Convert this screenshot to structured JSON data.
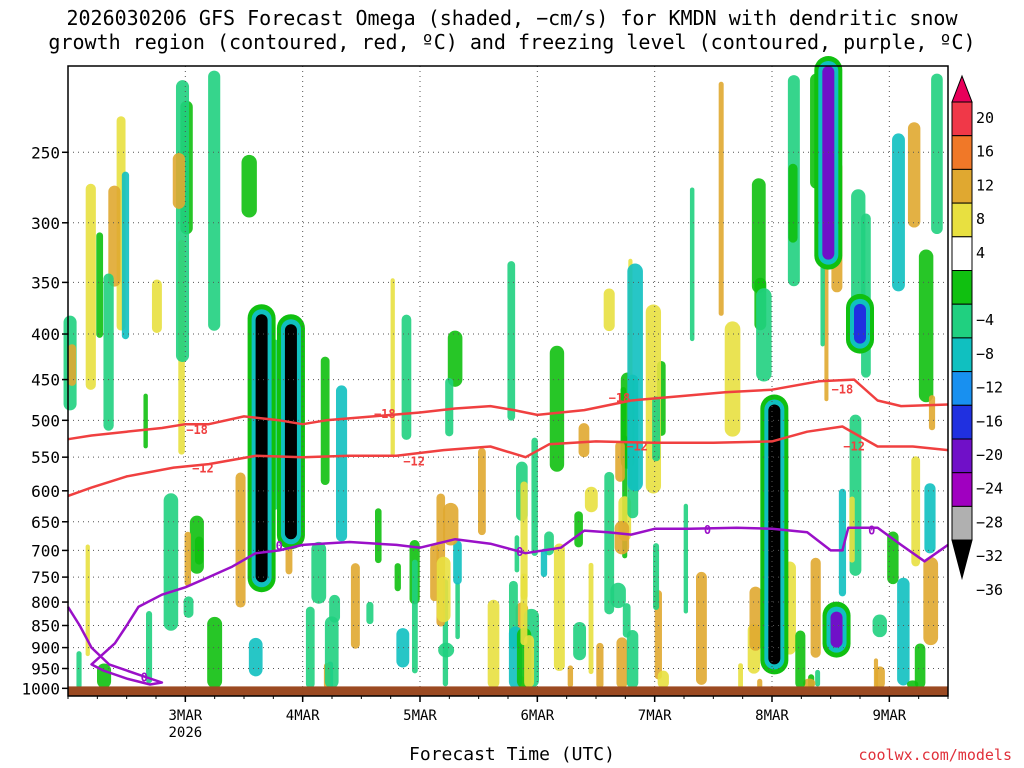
{
  "title_line1": "2026030206 GFS Forecast Omega (shaded, −cm/s) for KMDN with dendritic snow",
  "title_line2": "growth region (contoured, red, ºC) and freezing level (contoured, purple, ºC)",
  "credit": "coolwx.com/models",
  "colors": {
    "dgz_contour": "#f04040",
    "freezing_contour": "#9a10c8",
    "ground": "#9b4a22",
    "grid": "#555555"
  },
  "chart_data": {
    "type": "heatmap",
    "title": "2026030206 GFS Forecast Omega (shaded, −cm/s) for KMDN with dendritic snow growth region (contoured, red, ºC) and freezing level (contoured, purple, ºC)",
    "xlabel": "Forecast Time (UTC)",
    "ylabel": "",
    "y_axis": {
      "scale": "log",
      "inverted": true,
      "ylim": [
        1020,
        200
      ],
      "ticks": [
        "250",
        "300",
        "350",
        "400",
        "450",
        "500",
        "550",
        "600",
        "650",
        "700",
        "750",
        "800",
        "850",
        "900",
        "950",
        "1000"
      ]
    },
    "x_axis": {
      "xlim": [
        0.0,
        7.5
      ],
      "ticks": [
        {
          "value": 1,
          "label": "3MAR",
          "sublabel": "2026"
        },
        {
          "value": 2,
          "label": "4MAR"
        },
        {
          "value": 3,
          "label": "5MAR"
        },
        {
          "value": 4,
          "label": "6MAR"
        },
        {
          "value": 5,
          "label": "7MAR"
        },
        {
          "value": 6,
          "label": "8MAR"
        },
        {
          "value": 7,
          "label": "9MAR"
        }
      ]
    },
    "grid": true,
    "colorbar": {
      "position": "right",
      "labels": [
        "20",
        "16",
        "12",
        "8",
        "4",
        "−4",
        "−8",
        "−12",
        "−16",
        "−20",
        "−24",
        "−28",
        "−32",
        "−36"
      ],
      "colors": [
        "#e8005a",
        "#f03848",
        "#f07828",
        "#e0a830",
        "#e8e040",
        "#ffffff",
        "#10c010",
        "#20d080",
        "#10c0c0",
        "#1890f0",
        "#2030e0",
        "#7010c8",
        "#a000c0",
        "#b0b0b0",
        "#000000"
      ]
    },
    "contours": [
      {
        "name": "-18",
        "color": "#f04040",
        "label": "−18",
        "points": [
          [
            0.0,
            525
          ],
          [
            0.2,
            520
          ],
          [
            0.5,
            515
          ],
          [
            0.8,
            510
          ],
          [
            1.0,
            505
          ],
          [
            1.2,
            505
          ],
          [
            1.5,
            495
          ],
          [
            1.8,
            500
          ],
          [
            2.0,
            505
          ],
          [
            2.2,
            500
          ],
          [
            2.6,
            495
          ],
          [
            3.0,
            490
          ],
          [
            3.3,
            485
          ],
          [
            3.6,
            482
          ],
          [
            3.8,
            487
          ],
          [
            4.0,
            493
          ],
          [
            4.4,
            487
          ],
          [
            4.8,
            475
          ],
          [
            5.2,
            470
          ],
          [
            5.6,
            465
          ],
          [
            6.0,
            462
          ],
          [
            6.4,
            452
          ],
          [
            6.7,
            450
          ],
          [
            6.9,
            475
          ],
          [
            7.1,
            482
          ],
          [
            7.5,
            480
          ]
        ],
        "label_positions": [
          [
            1.1,
            513
          ],
          [
            2.7,
            492
          ],
          [
            4.7,
            472
          ],
          [
            6.6,
            462
          ]
        ]
      },
      {
        "name": "-12",
        "color": "#f04040",
        "label": "−12",
        "points": [
          [
            0.0,
            608
          ],
          [
            0.2,
            595
          ],
          [
            0.5,
            578
          ],
          [
            0.9,
            565
          ],
          [
            1.2,
            560
          ],
          [
            1.6,
            548
          ],
          [
            2.0,
            550
          ],
          [
            2.4,
            548
          ],
          [
            2.8,
            548
          ],
          [
            3.2,
            540
          ],
          [
            3.6,
            535
          ],
          [
            3.9,
            550
          ],
          [
            4.1,
            532
          ],
          [
            4.5,
            528
          ],
          [
            5.0,
            530
          ],
          [
            5.5,
            530
          ],
          [
            6.0,
            528
          ],
          [
            6.3,
            515
          ],
          [
            6.6,
            508
          ],
          [
            6.9,
            535
          ],
          [
            7.2,
            535
          ],
          [
            7.5,
            540
          ]
        ],
        "label_positions": [
          [
            1.15,
            566
          ],
          [
            2.95,
            556
          ],
          [
            4.85,
            535
          ],
          [
            6.7,
            535
          ]
        ]
      },
      {
        "name": "0",
        "color": "#9a10c8",
        "label": "0",
        "points": [
          [
            0.0,
            810
          ],
          [
            0.1,
            850
          ],
          [
            0.2,
            900
          ],
          [
            0.35,
            940
          ],
          [
            0.6,
            965
          ],
          [
            0.8,
            985
          ],
          [
            0.7,
            990
          ],
          [
            0.5,
            975
          ],
          [
            0.3,
            955
          ],
          [
            0.2,
            940
          ],
          [
            0.4,
            890
          ],
          [
            0.5,
            850
          ],
          [
            0.6,
            810
          ],
          [
            0.8,
            785
          ],
          [
            1.0,
            770
          ],
          [
            1.2,
            750
          ],
          [
            1.4,
            730
          ],
          [
            1.6,
            705
          ],
          [
            1.8,
            700
          ],
          [
            2.0,
            690
          ],
          [
            2.4,
            685
          ],
          [
            2.8,
            690
          ],
          [
            3.0,
            695
          ],
          [
            3.3,
            680
          ],
          [
            3.6,
            688
          ],
          [
            3.9,
            705
          ],
          [
            4.2,
            695
          ],
          [
            4.4,
            665
          ],
          [
            4.6,
            668
          ],
          [
            4.8,
            672
          ],
          [
            5.0,
            662
          ],
          [
            5.3,
            662
          ],
          [
            5.7,
            660
          ],
          [
            6.0,
            662
          ],
          [
            6.3,
            668
          ],
          [
            6.5,
            700
          ],
          [
            6.6,
            700
          ],
          [
            6.65,
            660
          ],
          [
            6.9,
            660
          ],
          [
            7.1,
            690
          ],
          [
            7.3,
            720
          ],
          [
            7.5,
            690
          ]
        ],
        "label_positions": [
          [
            1.8,
            692
          ],
          [
            3.85,
            703
          ],
          [
            5.45,
            664
          ],
          [
            0.65,
            972
          ],
          [
            6.85,
            665
          ]
        ]
      }
    ],
    "omega_columns": [
      {
        "x": 1.65,
        "top": 380,
        "bottom": 760,
        "level": "-36"
      },
      {
        "x": 1.9,
        "top": 390,
        "bottom": 680,
        "level": "-36"
      },
      {
        "x": 6.02,
        "top": 480,
        "bottom": 940,
        "level": "-36"
      },
      {
        "x": 6.48,
        "top": 200,
        "bottom": 330,
        "level": "-28"
      },
      {
        "x": 6.55,
        "top": 820,
        "bottom": 900,
        "level": "-28"
      },
      {
        "x": 6.75,
        "top": 370,
        "bottom": 410,
        "level": "-24"
      }
    ]
  }
}
